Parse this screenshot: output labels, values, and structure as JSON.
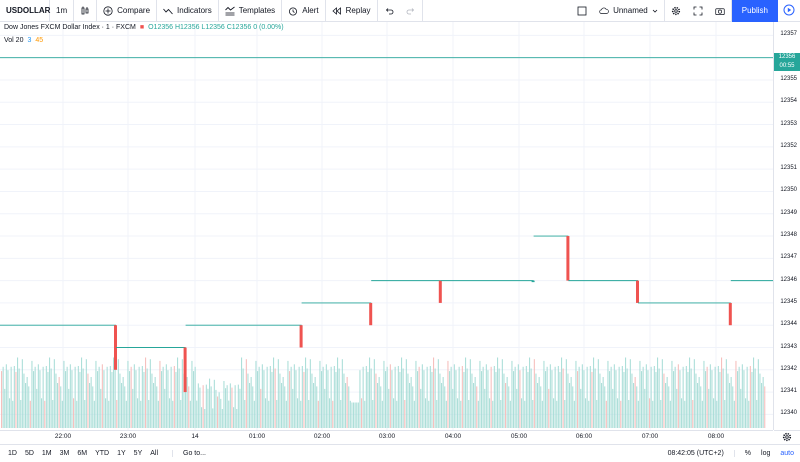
{
  "toolbar": {
    "symbol": "USDOLLAR",
    "interval": "1m",
    "compare": "Compare",
    "indicators": "Indicators",
    "templates": "Templates",
    "alert": "Alert",
    "replay": "Replay",
    "layout_name": "Unnamed",
    "publish": "Publish"
  },
  "legend": {
    "title": "Dow Jones FXCM Dollar Index · 1 · FXCM",
    "ohlc": "O12356 H12356 L12356 C12356 0 (0.00%)",
    "vol_label": "Vol 20",
    "vol_v1": "3",
    "vol_v2": "45"
  },
  "price_axis": {
    "labels": [
      "12357",
      "12356",
      "12355",
      "12354",
      "12353",
      "12352",
      "12351",
      "12350",
      "12349",
      "12348",
      "12347",
      "12346",
      "12345",
      "12344",
      "12343",
      "12342",
      "12341",
      "12340"
    ],
    "current_price": "12356",
    "countdown": "00:55"
  },
  "time_axis": {
    "labels": [
      "22:00",
      "23:00",
      "14",
      "01:00",
      "02:00",
      "03:00",
      "04:00",
      "05:00",
      "06:00",
      "07:00",
      "08:00"
    ]
  },
  "bottom": {
    "ranges": [
      "1D",
      "5D",
      "1M",
      "3M",
      "6M",
      "YTD",
      "1Y",
      "5Y",
      "All"
    ],
    "goto": "Go to...",
    "clock": "08:42:05 (UTC+2)",
    "percent": "%",
    "log": "log",
    "auto": "auto"
  },
  "colors": {
    "up": "#26a69a",
    "down": "#ef5350",
    "volume_up": "#9fd9d2",
    "volume_down": "#f4b5b3",
    "accent": "#2962ff"
  },
  "chart_data": {
    "type": "candlestick",
    "ylim": [
      12339.3,
      12357.6
    ],
    "ticks": [
      12357,
      12356,
      12355,
      12354,
      12353,
      12352,
      12351,
      12350,
      12349,
      12348,
      12347,
      12346,
      12345,
      12344,
      12343,
      12342,
      12341,
      12340
    ],
    "segments": [
      [
        12344,
        12342,
        10
      ],
      [
        12343,
        12341,
        6
      ],
      [
        12344,
        12343,
        10
      ],
      [
        12345,
        12344,
        6
      ],
      [
        12346,
        12345,
        6
      ],
      [
        12346,
        12346,
        8
      ],
      [
        12348,
        12346,
        3
      ],
      [
        12346,
        12345,
        6
      ],
      [
        12345,
        12344,
        8
      ],
      [
        12346,
        12344,
        12
      ],
      [
        12345,
        12343,
        8
      ],
      [
        12344,
        12343,
        10
      ],
      [
        12343,
        12342,
        6
      ],
      [
        12344,
        12343,
        10
      ],
      [
        12345,
        12344,
        8
      ],
      [
        12344,
        12343,
        8
      ],
      [
        12343,
        12342,
        6
      ],
      [
        12342,
        12341,
        6
      ],
      [
        12341,
        12340,
        8
      ],
      [
        12342,
        12341,
        12
      ],
      [
        12342,
        12341,
        6
      ],
      [
        12343,
        12341,
        6
      ],
      [
        12342,
        12341,
        10
      ],
      [
        12342,
        12341,
        8
      ],
      [
        12343,
        12342,
        6
      ],
      [
        12342,
        12341,
        12
      ],
      [
        12341,
        12341,
        20
      ],
      [
        12342,
        12341,
        10
      ],
      [
        12341,
        12341,
        10
      ],
      [
        12341,
        12340,
        8
      ],
      [
        12347,
        12341,
        4
      ],
      [
        12349,
        12348,
        6
      ],
      [
        12350,
        12349,
        8
      ],
      [
        12351,
        12350,
        10
      ],
      [
        12351,
        12350,
        10
      ],
      [
        12351,
        12351,
        6
      ],
      [
        12352,
        12351,
        10
      ],
      [
        12352,
        12351,
        6
      ],
      [
        12352,
        12351,
        6
      ],
      [
        12353,
        12352,
        10
      ],
      [
        12354,
        12353,
        8
      ],
      [
        12353,
        12353,
        10
      ],
      [
        12354,
        12353,
        8
      ],
      [
        12354,
        12353,
        10
      ],
      [
        12353,
        12353,
        12
      ],
      [
        12353,
        12352,
        10
      ],
      [
        12353,
        12352,
        10
      ],
      [
        12353,
        12352,
        12
      ],
      [
        12353,
        12352,
        10
      ],
      [
        12353,
        12352,
        12
      ],
      [
        12353,
        12352,
        14
      ],
      [
        12354,
        12353,
        8
      ],
      [
        12355,
        12354,
        8
      ],
      [
        12356,
        12355,
        8
      ],
      [
        12356,
        12356,
        10
      ],
      [
        12356,
        12355,
        6
      ],
      [
        12355,
        12354,
        6
      ],
      [
        12354,
        12353,
        4
      ],
      [
        12354,
        12355,
        6
      ],
      [
        12356,
        12355,
        6
      ],
      [
        12356,
        12356,
        10
      ],
      [
        12356,
        12357,
        6
      ],
      [
        12357,
        12355,
        6
      ],
      [
        12356,
        12355,
        8
      ],
      [
        12356,
        12356,
        6
      ]
    ],
    "volume_range": [
      0,
      100
    ],
    "volume_heights": [
      55,
      70,
      40,
      85,
      60,
      45,
      90,
      30,
      65,
      50,
      75,
      80,
      35,
      95,
      60,
      45,
      70,
      55,
      20,
      85
    ]
  }
}
